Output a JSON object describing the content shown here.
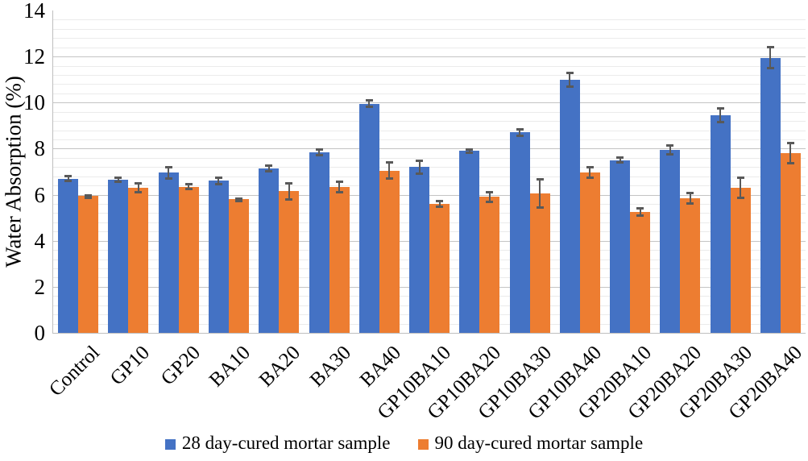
{
  "chart_data": {
    "type": "bar",
    "title": "",
    "xlabel": "",
    "ylabel": "Water Absorption (%)",
    "ylim": [
      0,
      14
    ],
    "y_major_step": 2,
    "y_minor_step": 0.4,
    "y_ticks": [
      0,
      2,
      4,
      6,
      8,
      10,
      12,
      14
    ],
    "grid": "horizontal major and minor gridlines, no right/top border",
    "legend_position": "bottom-center",
    "categories": [
      "Control",
      "GP10",
      "GP20",
      "BA10",
      "BA20",
      "BA30",
      "BA40",
      "GP10BA10",
      "GP10BA20",
      "GP10BA30",
      "GP10BA40",
      "GP20BA10",
      "GP20BA20",
      "GP20BA30",
      "GP20BA40"
    ],
    "series": [
      {
        "name": "28 day-cured mortar sample",
        "color": "#4472C4",
        "values": [
          6.7,
          6.65,
          6.95,
          6.6,
          7.15,
          7.85,
          9.95,
          7.2,
          7.9,
          8.7,
          11.0,
          7.5,
          7.95,
          9.45,
          11.95
        ],
        "errors": [
          0.15,
          0.13,
          0.3,
          0.2,
          0.18,
          0.17,
          0.2,
          0.33,
          0.13,
          0.18,
          0.35,
          0.15,
          0.25,
          0.35,
          0.5
        ]
      },
      {
        "name": "90 day-cured mortar sample",
        "color": "#ED7D31",
        "values": [
          5.95,
          6.3,
          6.35,
          5.8,
          6.15,
          6.35,
          7.05,
          5.6,
          5.9,
          6.05,
          6.95,
          5.25,
          5.85,
          6.3,
          7.8
        ],
        "errors": [
          0.06,
          0.25,
          0.15,
          0.08,
          0.4,
          0.28,
          0.4,
          0.17,
          0.25,
          0.67,
          0.28,
          0.2,
          0.28,
          0.5,
          0.5
        ]
      }
    ],
    "error_bar_color": "#595959",
    "colors": {
      "background": "#FFFFFF",
      "major_grid": "#C4C4C4",
      "minor_grid": "#EBEBEB",
      "axis_line": "#BFBFBF",
      "text": "#000000"
    }
  }
}
